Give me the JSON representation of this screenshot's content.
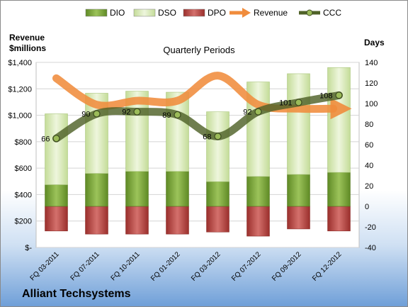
{
  "chart_data": {
    "type": "bar",
    "company": "Alliant Techsystems",
    "subtitle": "Quarterly Periods",
    "left_axis_title": [
      "Revenue",
      "$millions"
    ],
    "right_axis_title": "Days",
    "legend": {
      "position": "top",
      "entries": [
        "DIO",
        "DSO",
        "DPO",
        "Revenue",
        "CCC"
      ]
    },
    "categories": [
      "FQ 03-2011",
      "FQ 07-2011",
      "FQ 10-2011",
      "FQ 01-2012",
      "FQ 03-2012",
      "FQ 07-2012",
      "FQ 09-2012",
      "FQ 12-2012"
    ],
    "left_axis": {
      "min": 0,
      "max": 1400,
      "step": 200,
      "tick_labels": [
        "$-",
        "$200",
        "$400",
        "$600",
        "$800",
        "$1,000",
        "$1,200",
        "$1,400"
      ]
    },
    "right_axis": {
      "min": -40,
      "max": 140,
      "step": 20,
      "tick_labels": [
        "-40",
        "-20",
        "0",
        "20",
        "40",
        "60",
        "80",
        "100",
        "120",
        "140"
      ]
    },
    "series": [
      {
        "name": "DIO",
        "axis": "right",
        "kind": "stacked-bar",
        "values": [
          21,
          32,
          34,
          34,
          24,
          29,
          31,
          33
        ],
        "color": "#7eab3c"
      },
      {
        "name": "DSO",
        "axis": "right",
        "kind": "stacked-bar",
        "values": [
          69,
          78,
          78,
          77,
          68,
          92,
          98,
          102
        ],
        "color": "#d8eab8"
      },
      {
        "name": "DPO",
        "axis": "right",
        "kind": "stacked-bar",
        "values": [
          -24,
          -27,
          -27,
          -27,
          -25,
          -29,
          -22,
          -24
        ],
        "color": "#c0504d"
      },
      {
        "name": "Revenue",
        "axis": "left",
        "kind": "line",
        "values": [
          1280,
          1080,
          1110,
          1110,
          1300,
          1080,
          1050,
          1050
        ],
        "color": "#f08c3c"
      },
      {
        "name": "CCC",
        "axis": "right",
        "kind": "line",
        "values": [
          66,
          90,
          92,
          89,
          68,
          92,
          101,
          108
        ],
        "color": "#4f6228"
      }
    ],
    "ccc_labels": [
      "66",
      "90",
      "92",
      "89",
      "68",
      "92",
      "101",
      "108"
    ]
  }
}
